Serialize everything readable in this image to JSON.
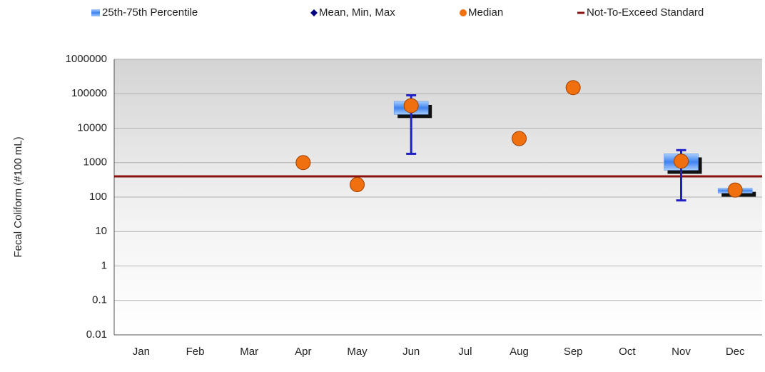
{
  "chart_data": {
    "type": "box",
    "y_label": "Fecal Coliform (#100 mL)",
    "categories": [
      "Jan",
      "Feb",
      "Mar",
      "Apr",
      "May",
      "Jun",
      "Jul",
      "Aug",
      "Sep",
      "Oct",
      "Nov",
      "Dec"
    ],
    "boxes": {
      "name": "25th-75th Percentile",
      "color": "#4f8fe8",
      "q1": [
        null,
        null,
        null,
        null,
        null,
        25000,
        null,
        null,
        null,
        null,
        600,
        130
      ],
      "q3": [
        null,
        null,
        null,
        null,
        null,
        60000,
        null,
        null,
        null,
        null,
        1800,
        180
      ]
    },
    "whiskers": {
      "name": "Mean, Min, Max",
      "color": "#1f1fc8",
      "min": [
        null,
        null,
        null,
        null,
        null,
        1800,
        null,
        null,
        null,
        null,
        80,
        null
      ],
      "max": [
        null,
        null,
        null,
        null,
        null,
        90000,
        null,
        null,
        null,
        null,
        2300,
        null
      ]
    },
    "medians": {
      "name": "Median",
      "color": "#f07010",
      "values": [
        null,
        null,
        null,
        1000,
        230,
        45000,
        null,
        5000,
        150000,
        null,
        1100,
        160
      ]
    },
    "standard": {
      "name": "Not-To-Exceed Standard",
      "color": "#8b1010",
      "value": 400
    },
    "log_scale": true,
    "ylim": [
      0.01,
      1000000
    ],
    "yticks": [
      0.01,
      0.1,
      1,
      10,
      100,
      1000,
      10000,
      100000,
      1000000
    ],
    "grid": true
  }
}
